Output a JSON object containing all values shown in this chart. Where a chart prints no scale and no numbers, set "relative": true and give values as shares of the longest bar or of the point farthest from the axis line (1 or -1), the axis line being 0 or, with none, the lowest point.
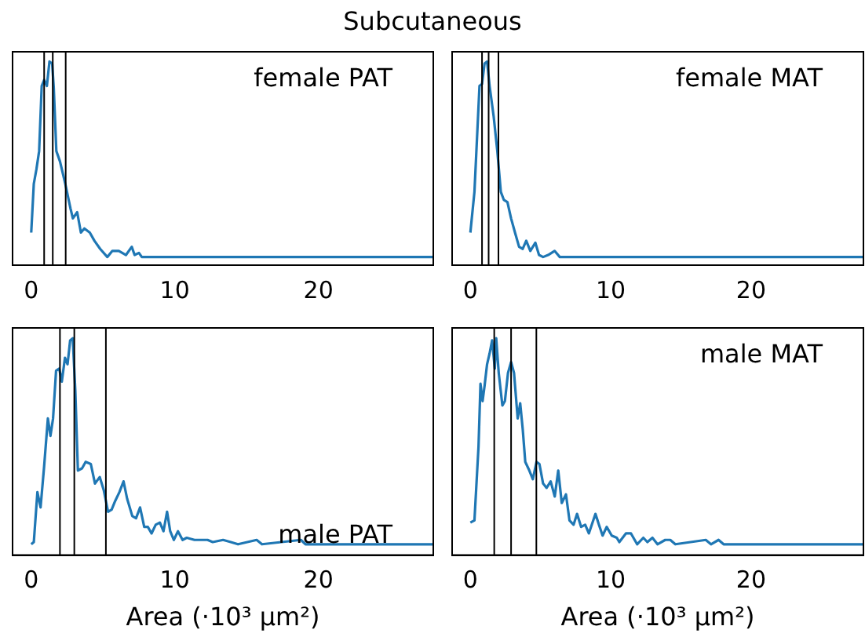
{
  "chart_data": [
    {
      "type": "line",
      "title": "Subcutaneous",
      "annotations": [
        "female PAT"
      ],
      "relative": true,
      "xlim": [
        -1.3,
        28
      ],
      "xticks": [
        0,
        10,
        20
      ],
      "tick_labels": "x",
      "series": [
        {
          "color": "#1f77b4",
          "x": [
            0,
            0.18,
            0.36,
            0.55,
            0.73,
            0.9,
            1.09,
            1.27,
            1.46,
            1.57,
            1.75,
            2.0,
            2.37,
            2.73,
            2.9,
            3.2,
            3.46,
            3.7,
            4.08,
            4.4,
            4.8,
            5.3,
            5.65,
            6.1,
            6.6,
            7.0,
            7.2,
            7.5,
            7.7,
            28
          ],
          "values": [
            0.16,
            0.4,
            0.47,
            0.56,
            0.88,
            0.91,
            0.88,
            1.0,
            0.99,
            0.87,
            0.56,
            0.51,
            0.4,
            0.28,
            0.23,
            0.26,
            0.16,
            0.18,
            0.16,
            0.12,
            0.08,
            0.04,
            0.07,
            0.07,
            0.05,
            0.09,
            0.05,
            0.06,
            0.04,
            0.04
          ]
        }
      ],
      "ref_lines": [
        {
          "axis": "x",
          "value": 0.9,
          "color": "#000000"
        },
        {
          "axis": "x",
          "value": 1.5,
          "color": "#000000"
        },
        {
          "axis": "x",
          "value": 2.4,
          "color": "#000000"
        }
      ]
    },
    {
      "type": "line",
      "annotations": [
        "female MAT"
      ],
      "relative": true,
      "xlim": [
        -1.3,
        28
      ],
      "xticks": [
        0,
        10,
        20
      ],
      "tick_labels": "x",
      "series": [
        {
          "color": "#1f77b4",
          "x": [
            0,
            0.29,
            0.65,
            0.83,
            1.01,
            1.19,
            1.37,
            1.66,
            1.92,
            2.17,
            2.39,
            2.64,
            2.9,
            3.18,
            3.47,
            3.73,
            3.98,
            4.27,
            4.63,
            4.89,
            5.18,
            5.54,
            6.0,
            6.37,
            28
          ],
          "values": [
            0.16,
            0.36,
            0.88,
            0.89,
            0.99,
            1.0,
            0.88,
            0.73,
            0.56,
            0.36,
            0.32,
            0.31,
            0.23,
            0.16,
            0.09,
            0.08,
            0.12,
            0.07,
            0.11,
            0.05,
            0.04,
            0.05,
            0.07,
            0.04,
            0.04
          ]
        }
      ],
      "ref_lines": [
        {
          "axis": "x",
          "value": 0.83,
          "color": "#000000"
        },
        {
          "axis": "x",
          "value": 1.3,
          "color": "#000000"
        },
        {
          "axis": "x",
          "value": 2.0,
          "color": "#000000"
        }
      ]
    },
    {
      "type": "line",
      "annotations": [
        "male PAT"
      ],
      "xlabel": "Area (·10³ μm²)",
      "relative": true,
      "xlim": [
        -1.3,
        28
      ],
      "xticks": [
        0,
        10,
        20
      ],
      "tick_labels": "x",
      "series": [
        {
          "color": "#1f77b4",
          "x": [
            0,
            0.18,
            0.43,
            0.65,
            0.9,
            1.16,
            1.34,
            1.52,
            1.73,
            1.95,
            2.13,
            2.35,
            2.53,
            2.71,
            2.89,
            3.07,
            3.25,
            3.54,
            3.79,
            4.15,
            4.44,
            4.77,
            5.05,
            5.35,
            5.6,
            5.85,
            6.14,
            6.43,
            6.68,
            7.04,
            7.3,
            7.58,
            7.87,
            8.12,
            8.38,
            8.67,
            8.96,
            9.21,
            9.46,
            9.68,
            9.93,
            10.22,
            10.54,
            10.83,
            11.37,
            12.28,
            12.64,
            13.36,
            13.9,
            14.4,
            15.7,
            16.07,
            18.78,
            19.1,
            28
          ],
          "values": [
            0.05,
            0.06,
            0.29,
            0.22,
            0.41,
            0.63,
            0.55,
            0.63,
            0.85,
            0.86,
            0.8,
            0.91,
            0.88,
            0.99,
            1.0,
            0.76,
            0.39,
            0.4,
            0.43,
            0.42,
            0.33,
            0.36,
            0.3,
            0.2,
            0.21,
            0.25,
            0.29,
            0.34,
            0.26,
            0.18,
            0.17,
            0.22,
            0.13,
            0.13,
            0.1,
            0.14,
            0.15,
            0.11,
            0.2,
            0.11,
            0.07,
            0.11,
            0.07,
            0.08,
            0.07,
            0.07,
            0.06,
            0.07,
            0.06,
            0.05,
            0.07,
            0.05,
            0.07,
            0.05,
            0.05
          ]
        }
      ],
      "ref_lines": [
        {
          "axis": "x",
          "value": 2.0,
          "color": "#000000"
        },
        {
          "axis": "x",
          "value": 3.0,
          "color": "#000000"
        },
        {
          "axis": "x",
          "value": 5.2,
          "color": "#000000"
        }
      ]
    },
    {
      "type": "line",
      "annotations": [
        "male MAT"
      ],
      "xlabel": "Area (·10³ μm²)",
      "relative": true,
      "xlim": [
        -1.3,
        28
      ],
      "xticks": [
        0,
        10,
        20
      ],
      "tick_labels": "x",
      "series": [
        {
          "color": "#1f77b4",
          "x": [
            0,
            0.29,
            0.58,
            0.72,
            0.87,
            1.01,
            1.19,
            1.37,
            1.55,
            1.74,
            1.84,
            2.02,
            2.28,
            2.46,
            2.68,
            2.9,
            3.11,
            3.37,
            3.55,
            3.73,
            3.91,
            4.2,
            4.45,
            4.71,
            4.92,
            5.18,
            5.43,
            5.72,
            6.01,
            6.26,
            6.51,
            6.81,
            7.06,
            7.35,
            7.6,
            7.89,
            8.18,
            8.44,
            8.91,
            9.16,
            9.42,
            9.71,
            10.07,
            10.43,
            10.61,
            11.08,
            11.44,
            11.88,
            12.32,
            12.61,
            12.97,
            13.33,
            13.88,
            14.24,
            14.6,
            16.77,
            17.14,
            17.68,
            18.04,
            28
          ],
          "values": [
            0.15,
            0.16,
            0.5,
            0.79,
            0.71,
            0.78,
            0.88,
            0.93,
            0.99,
            0.86,
            1.0,
            0.84,
            0.69,
            0.71,
            0.84,
            0.89,
            0.84,
            0.63,
            0.7,
            0.58,
            0.43,
            0.39,
            0.35,
            0.43,
            0.42,
            0.33,
            0.31,
            0.34,
            0.27,
            0.39,
            0.24,
            0.28,
            0.16,
            0.14,
            0.19,
            0.13,
            0.14,
            0.1,
            0.19,
            0.14,
            0.09,
            0.13,
            0.09,
            0.08,
            0.06,
            0.1,
            0.1,
            0.05,
            0.08,
            0.06,
            0.08,
            0.05,
            0.07,
            0.07,
            0.05,
            0.07,
            0.05,
            0.07,
            0.05,
            0.05
          ]
        }
      ],
      "ref_lines": [
        {
          "axis": "x",
          "value": 1.7,
          "color": "#000000"
        },
        {
          "axis": "x",
          "value": 2.9,
          "color": "#000000"
        },
        {
          "axis": "x",
          "value": 4.7,
          "color": "#000000"
        }
      ]
    }
  ]
}
